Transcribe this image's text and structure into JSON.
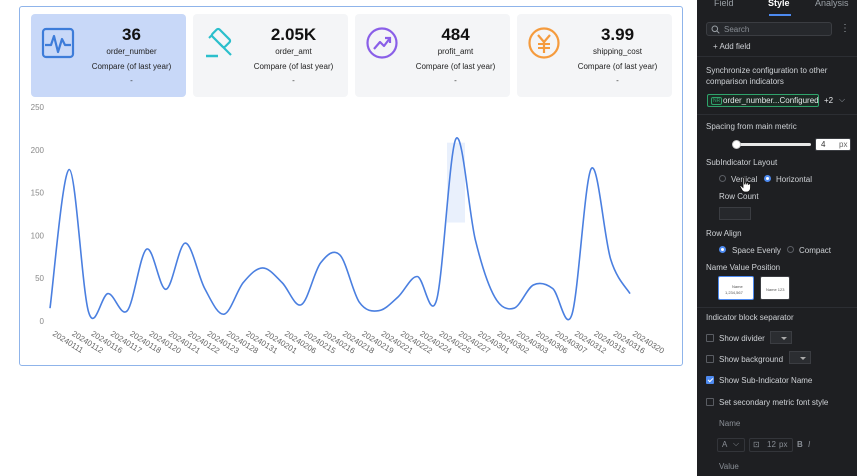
{
  "cards": [
    {
      "value": "36",
      "name": "order_number",
      "compare": "Compare (of last year)",
      "dash": "-",
      "icon": "heartbeat-icon",
      "color": "#3d7cd9"
    },
    {
      "value": "2.05K",
      "name": "order_amt",
      "compare": "Compare (of last year)",
      "dash": "-",
      "icon": "gavel-icon",
      "color": "#2bbfcc"
    },
    {
      "value": "484",
      "name": "profit_amt",
      "compare": "Compare (of last year)",
      "dash": "-",
      "icon": "trend-up-icon",
      "color": "#8a5fe8"
    },
    {
      "value": "3.99",
      "name": "shipping_cost",
      "compare": "Compare (of last year)",
      "dash": "-",
      "icon": "yen-icon",
      "color": "#f59b3d"
    }
  ],
  "chart_data": {
    "type": "line",
    "title": "",
    "xlabel": "",
    "ylabel": "",
    "ylim": [
      0,
      250
    ],
    "yticks": [
      0,
      50,
      100,
      150,
      200,
      250
    ],
    "grid": false,
    "line_color": "#4a7fe0",
    "x": [
      "20240111",
      "20240112",
      "20240116",
      "20240117",
      "20240118",
      "20240120",
      "20240121",
      "20240122",
      "20240123",
      "20240128",
      "20240131",
      "20240201",
      "20240206",
      "20240215",
      "20240216",
      "20240218",
      "20240219",
      "20240221",
      "20240222",
      "20240224",
      "20240225",
      "20240227",
      "20240301",
      "20240302",
      "20240303",
      "20240306",
      "20240307",
      "20240312",
      "20240315",
      "20240316",
      "20240320"
    ],
    "values": [
      15,
      177,
      10,
      32,
      12,
      84,
      37,
      91,
      38,
      8,
      45,
      62,
      45,
      19,
      68,
      77,
      22,
      12,
      28,
      52,
      25,
      213,
      95,
      28,
      15,
      42,
      38,
      8,
      178,
      72,
      32
    ]
  },
  "panel": {
    "tabs": [
      "Field",
      "Style",
      "Analysis"
    ],
    "search_placeholder": "Search",
    "add_field": "+ Add field",
    "sync_label": "Synchronize configuration to other comparison indicators",
    "sync_chip_tag": "NR",
    "sync_chip": "order_number...Configured",
    "sync_more": "+2",
    "spacing_label": "Spacing from main metric",
    "spacing_value": "4",
    "spacing_unit": "px",
    "spacing_fraction": 0.04,
    "layout_label": "SubIndicator Layout",
    "layout_vertical": "Vertical",
    "layout_horizontal": "Horizontal",
    "row_count_label": "Row Count",
    "row_align_label": "Row Align",
    "align_even": "Space Evenly",
    "align_compact": "Compact",
    "name_value_label": "Name Value Position",
    "preview_name": "Name",
    "preview_value": "1,234,567",
    "preview_inline": "Name 123",
    "separator_label": "Indicator block separator",
    "show_divider": "Show divider",
    "show_background": "Show background",
    "show_sub_name": "Show Sub-Indicator Name",
    "secondary_font": "Set secondary metric font style",
    "name_heading": "Name",
    "font_a": "A",
    "font_size": "12",
    "font_unit": "px",
    "bold": "B",
    "italic": "I",
    "value_heading": "Value"
  },
  "colors": {
    "accent": "#4d8af0",
    "panel_bg": "#1e1f22"
  }
}
